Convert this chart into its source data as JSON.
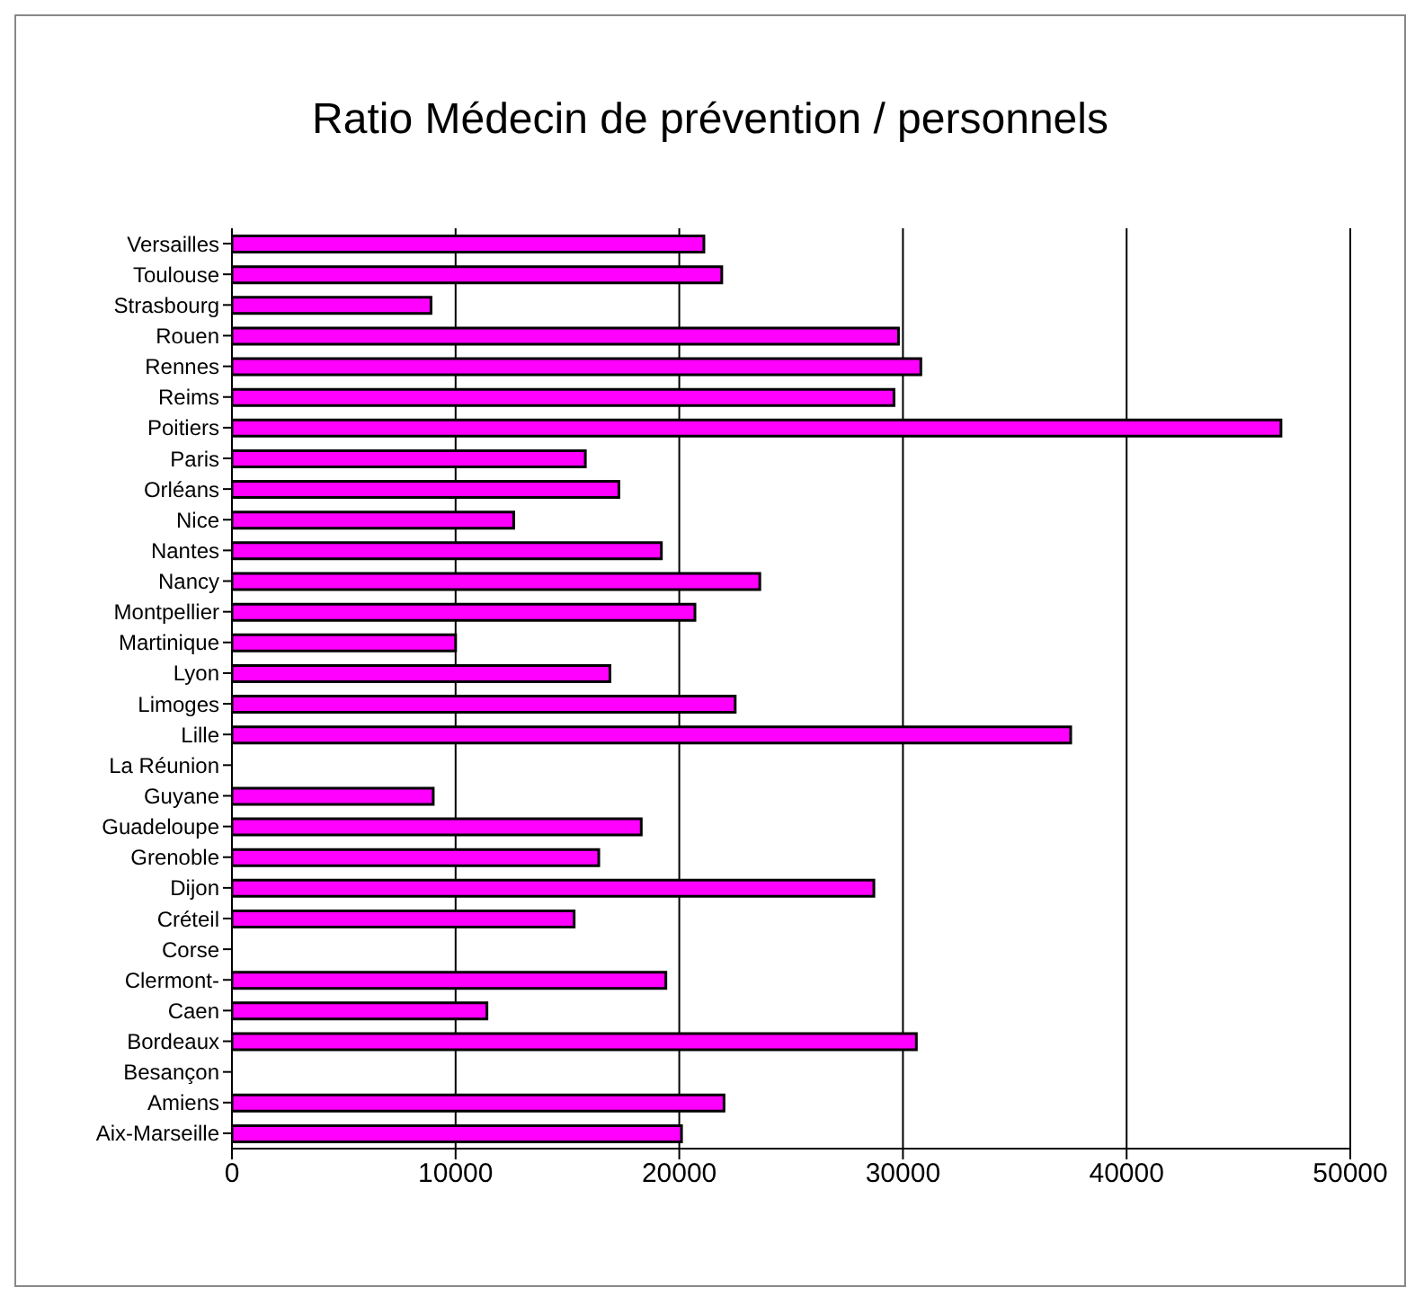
{
  "chart_data": {
    "type": "bar",
    "orientation": "horizontal",
    "title": "Ratio Médecin de prévention / personnels",
    "categories": [
      "Versailles",
      "Toulouse",
      "Strasbourg",
      "Rouen",
      "Rennes",
      "Reims",
      "Poitiers",
      "Paris",
      "Orléans",
      "Nice",
      "Nantes",
      "Nancy",
      "Montpellier",
      "Martinique",
      "Lyon",
      "Limoges",
      "Lille",
      "La Réunion",
      "Guyane",
      "Guadeloupe",
      "Grenoble",
      "Dijon",
      "Créteil",
      "Corse",
      "Clermont-",
      "Caen",
      "Bordeaux",
      "Besançon",
      "Amiens",
      "Aix-Marseille"
    ],
    "values": [
      21100,
      21900,
      8900,
      29800,
      30800,
      29600,
      46900,
      15800,
      17300,
      12600,
      19200,
      23600,
      20700,
      10000,
      16900,
      22500,
      37500,
      null,
      9000,
      18300,
      16400,
      28700,
      15300,
      null,
      19400,
      11400,
      30600,
      null,
      22000,
      20100
    ],
    "color": "#ff00ff",
    "xlim": [
      0,
      50000
    ],
    "xticks": [
      0,
      10000,
      20000,
      30000,
      40000,
      50000
    ],
    "grid": "x",
    "legend": false
  }
}
